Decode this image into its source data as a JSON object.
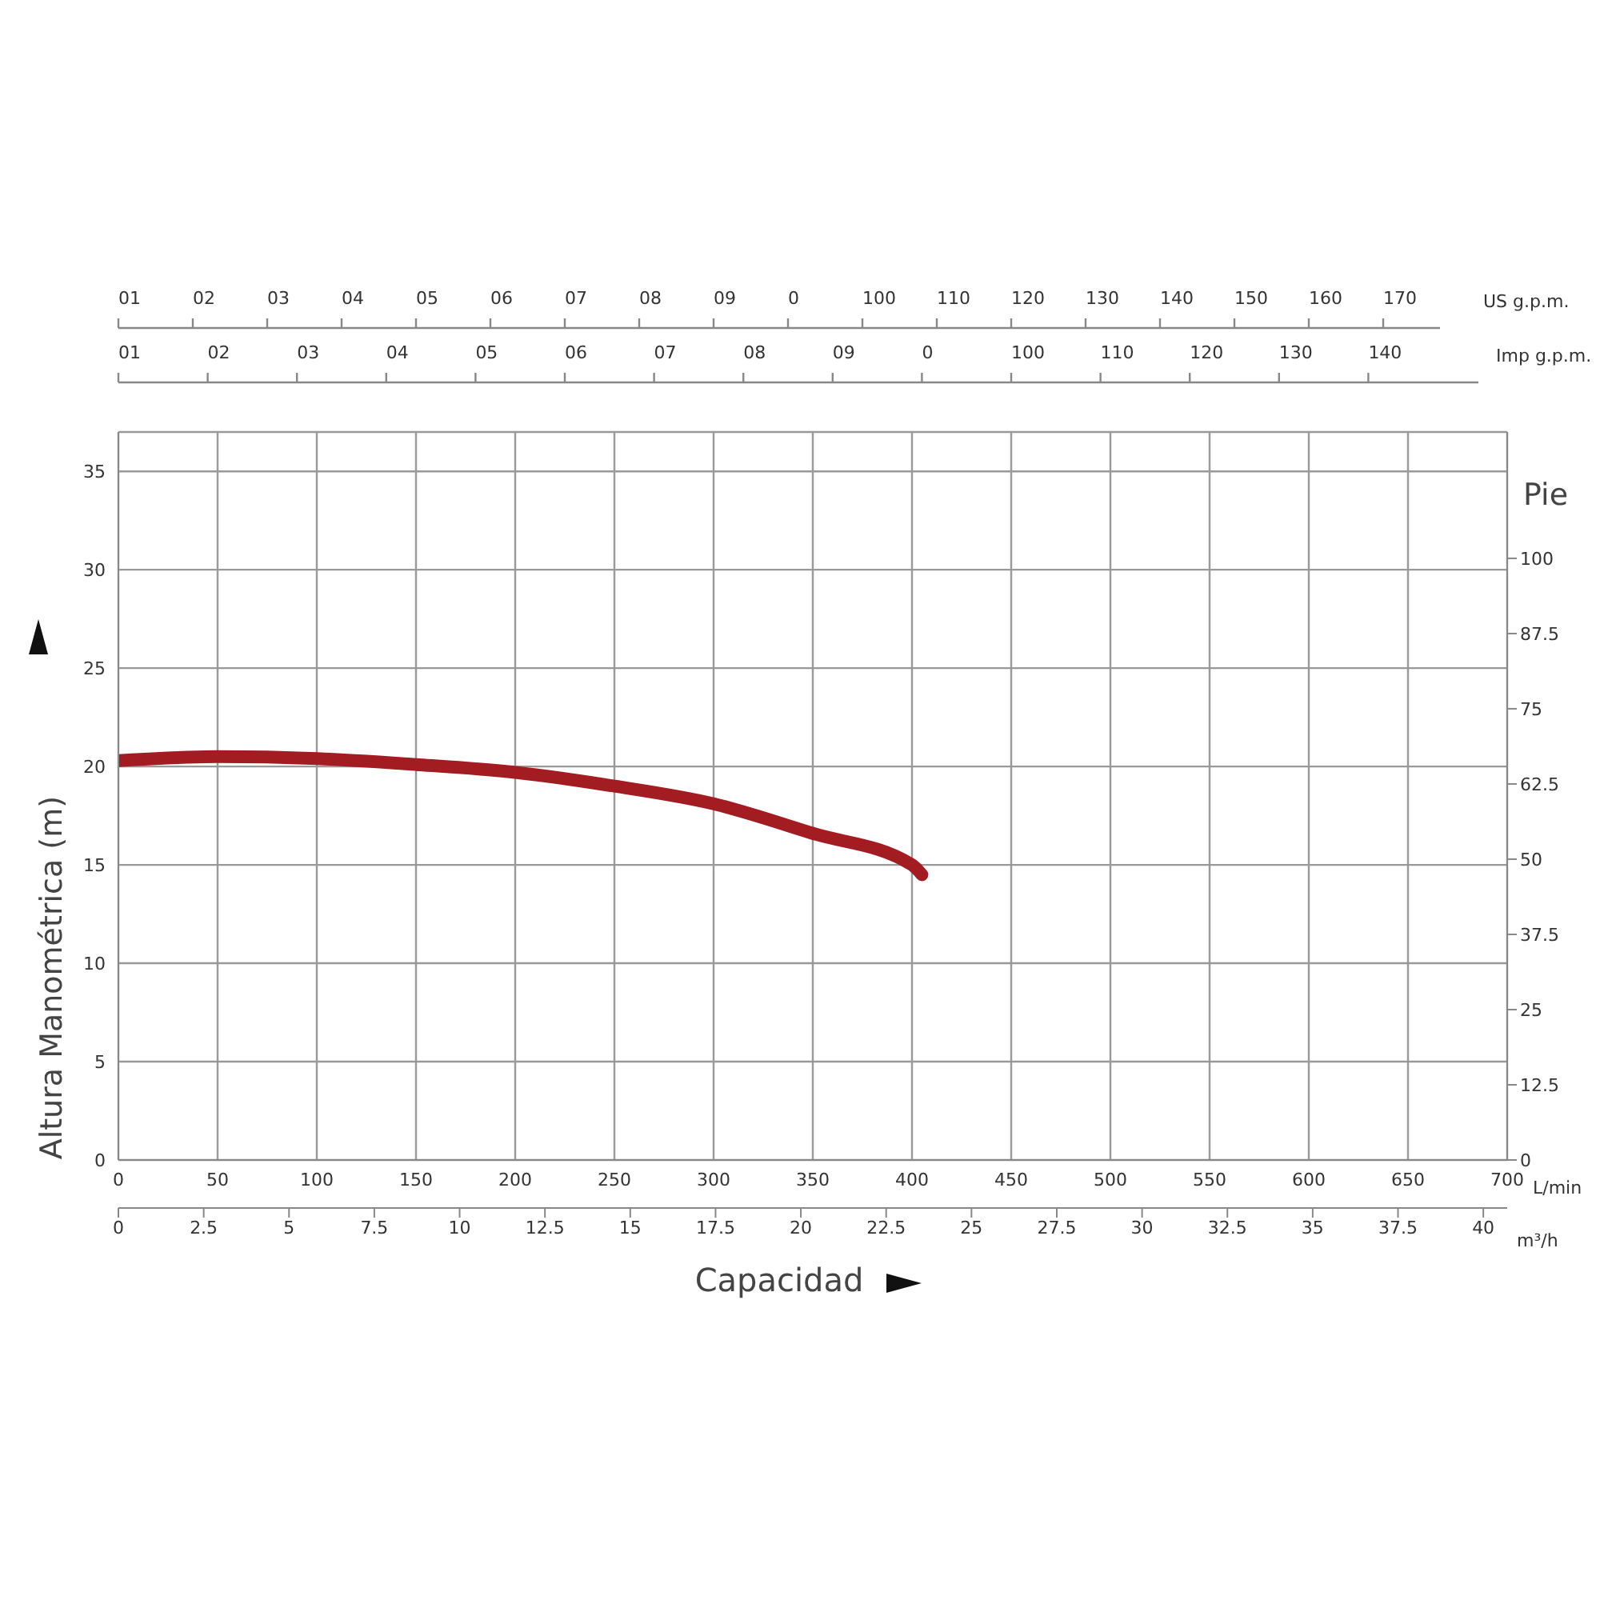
{
  "chart_data": {
    "type": "line",
    "xlabel": "L/min",
    "x2label": "m³/h",
    "ylabel": "Altura Manométrica (m)",
    "y2label": "Pie",
    "annotations": [
      "Capacidad",
      "01 02 03 04 05 06 07 08 09 0 100 110 120 130 140 150 160 170",
      "US g.p.m.",
      "01 02 03 04 05 06 07 08 09 0 100 110 120 130 140",
      "Imp g.p.m."
    ],
    "x": [
      0,
      50,
      100,
      150,
      200,
      250,
      300,
      350,
      400,
      405
    ],
    "series": [
      {
        "color": "#a31c22",
        "values": [
          20.3,
          20.5,
          20.4,
          20.1,
          19.7,
          19.0,
          18.1,
          16.6,
          15.0,
          14.5
        ]
      }
    ],
    "xlim": [
      0,
      700
    ],
    "xticks": [
      0,
      50,
      100,
      150,
      200,
      250,
      300,
      350,
      400,
      450,
      500,
      550,
      600,
      650,
      700
    ],
    "x2lim": [
      0,
      40.7
    ],
    "x2ticks": [
      0,
      2.5,
      5,
      7.5,
      10,
      12.5,
      15,
      17.5,
      20,
      22.5,
      25,
      27.5,
      30,
      32.5,
      35,
      37.5,
      40
    ],
    "ylim": [
      0,
      37
    ],
    "yticks": [
      0,
      5,
      10,
      15,
      20,
      25,
      30,
      35
    ],
    "y2lim": [
      0,
      121
    ],
    "y2ticks": [
      0,
      12.5,
      25,
      37.5,
      50,
      62.5,
      75,
      87.5,
      100
    ],
    "grid": true,
    "marker": "none",
    "line_style": "solid"
  }
}
